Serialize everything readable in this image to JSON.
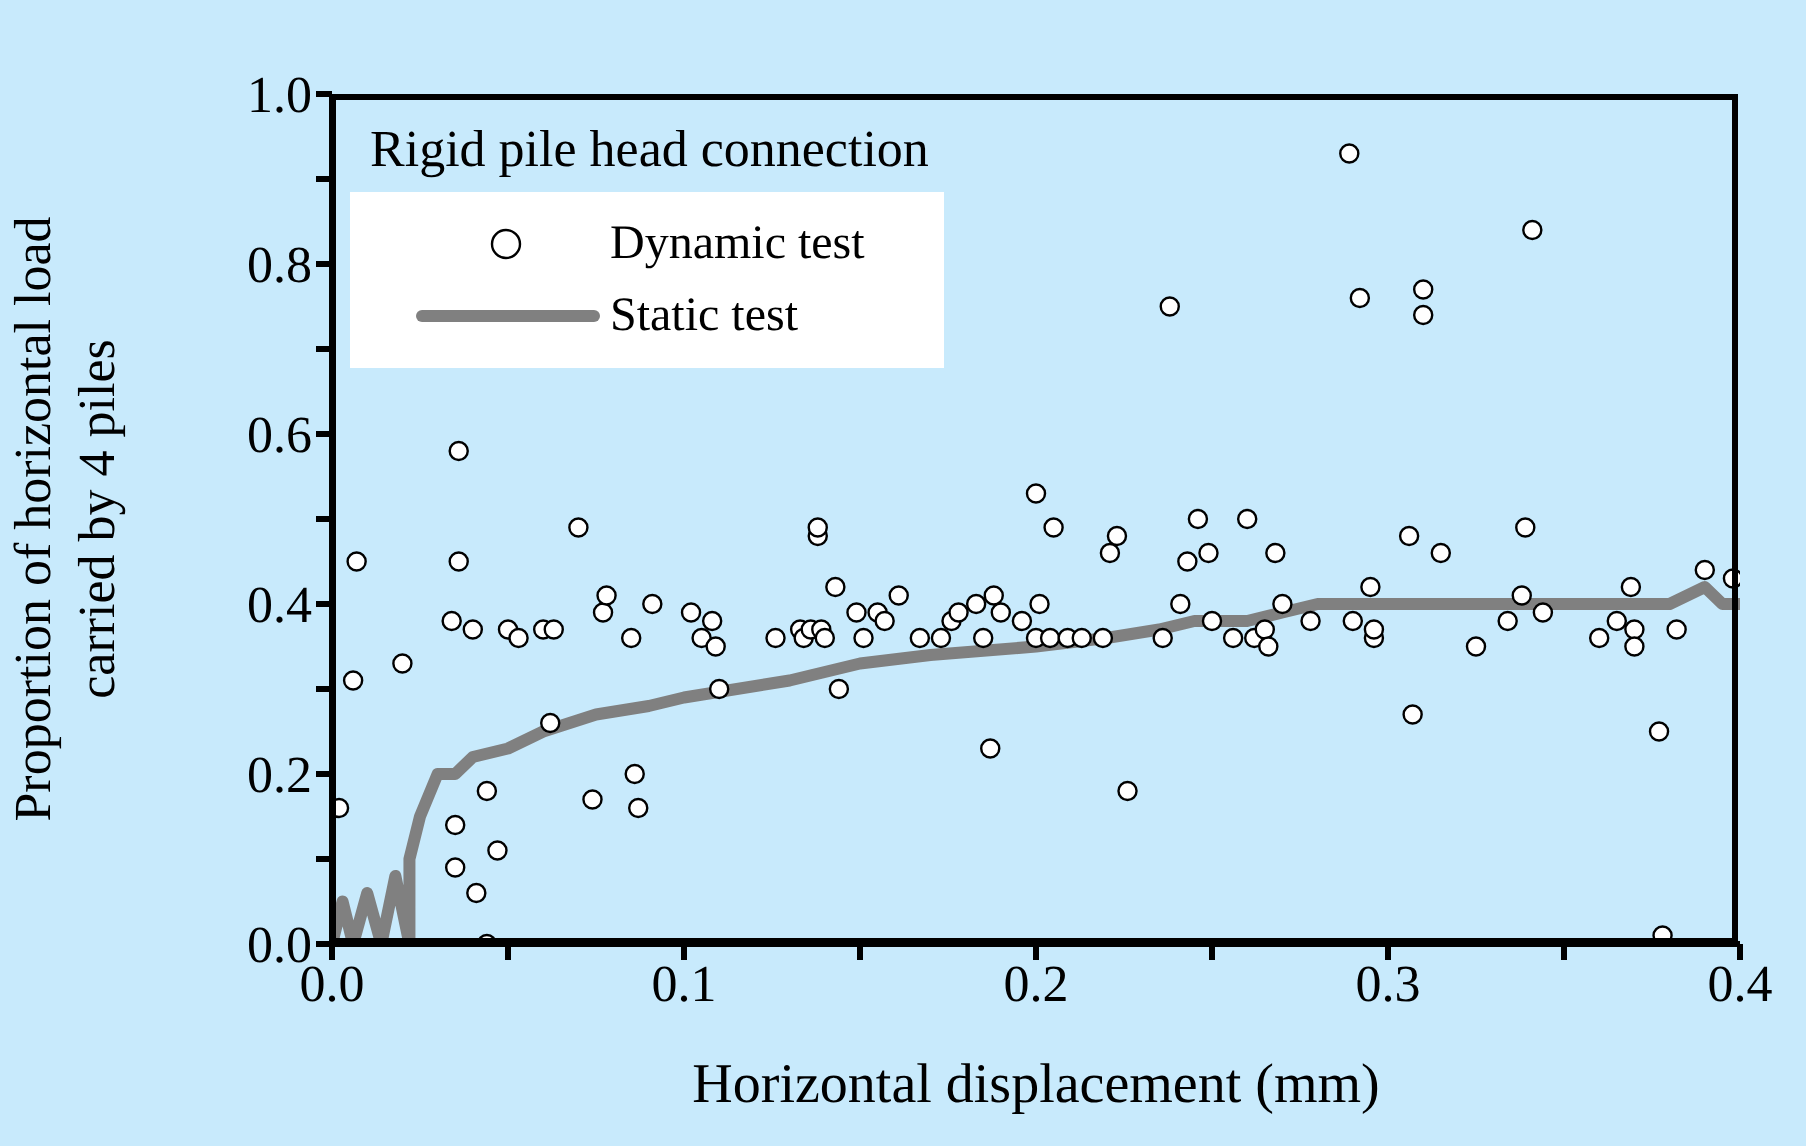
{
  "chart_data": {
    "type": "scatter",
    "xlabel": "Horizontal displacement (mm)",
    "ylabel": "Proportion of horizontal load\ncarried by 4 piles",
    "annotations": [
      "Rigid pile head connection"
    ],
    "xlim": [
      0,
      0.4
    ],
    "xticks": [
      {
        "value": 0,
        "label": "0.0"
      },
      {
        "value": 0.05,
        "label": null
      },
      0.1,
      {
        "value": 0.15,
        "label": null
      },
      0.2,
      {
        "value": 0.25,
        "label": null
      },
      0.3,
      {
        "value": 0.35,
        "label": null
      },
      0.4
    ],
    "ylim": [
      0,
      1
    ],
    "yticks": [
      {
        "value": 0,
        "label": "0.0"
      },
      {
        "value": 0.1,
        "label": null
      },
      0.2,
      {
        "value": 0.3,
        "label": null
      },
      0.4,
      {
        "value": 0.5,
        "label": null
      },
      0.6,
      {
        "value": 0.7,
        "label": null
      },
      0.8,
      {
        "value": 0.9,
        "label": null
      },
      {
        "value": 1,
        "label": "1.0"
      }
    ],
    "legend": "top left",
    "series": [
      {
        "name": "Dynamic test",
        "marker": "circle",
        "color": "#ffffff",
        "x": [
          0.002,
          0.006,
          0.007,
          0.02,
          0.036,
          0.036,
          0.034,
          0.04,
          0.035,
          0.035,
          0.041,
          0.044,
          0.047,
          0.044,
          0.05,
          0.053,
          0.06,
          0.063,
          0.062,
          0.07,
          0.074,
          0.077,
          0.078,
          0.085,
          0.086,
          0.087,
          0.091,
          0.102,
          0.105,
          0.108,
          0.109,
          0.11,
          0.126,
          0.133,
          0.134,
          0.136,
          0.139,
          0.138,
          0.138,
          0.143,
          0.144,
          0.14,
          0.149,
          0.155,
          0.151,
          0.157,
          0.161,
          0.167,
          0.173,
          0.176,
          0.178,
          0.183,
          0.185,
          0.187,
          0.188,
          0.19,
          0.196,
          0.2,
          0.201,
          0.2,
          0.204,
          0.205,
          0.209,
          0.213,
          0.219,
          0.221,
          0.223,
          0.226,
          0.238,
          0.236,
          0.241,
          0.243,
          0.246,
          0.249,
          0.25,
          0.256,
          0.26,
          0.262,
          0.265,
          0.266,
          0.268,
          0.27,
          0.278,
          0.289,
          0.29,
          0.292,
          0.296,
          0.296,
          0.295,
          0.307,
          0.306,
          0.31,
          0.31,
          0.315,
          0.325,
          0.334,
          0.338,
          0.339,
          0.341,
          0.344,
          0.36,
          0.365,
          0.369,
          0.37,
          0.37,
          0.377,
          0.378,
          0.382,
          0.39,
          0.398
        ],
        "values": [
          0.16,
          0.31,
          0.45,
          0.33,
          0.58,
          0.45,
          0.38,
          0.37,
          0.14,
          0.09,
          0.06,
          0.18,
          0.11,
          0.0,
          0.37,
          0.36,
          0.37,
          0.37,
          0.26,
          0.49,
          0.17,
          0.39,
          0.41,
          0.36,
          0.2,
          0.16,
          0.4,
          0.39,
          0.36,
          0.38,
          0.35,
          0.3,
          0.36,
          0.37,
          0.36,
          0.37,
          0.37,
          0.48,
          0.49,
          0.42,
          0.3,
          0.36,
          0.39,
          0.39,
          0.36,
          0.38,
          0.41,
          0.36,
          0.36,
          0.38,
          0.39,
          0.4,
          0.36,
          0.23,
          0.41,
          0.39,
          0.38,
          0.53,
          0.4,
          0.36,
          0.36,
          0.49,
          0.36,
          0.36,
          0.36,
          0.46,
          0.48,
          0.18,
          0.75,
          0.36,
          0.4,
          0.45,
          0.5,
          0.46,
          0.38,
          0.36,
          0.5,
          0.36,
          0.37,
          0.35,
          0.46,
          0.4,
          0.38,
          0.93,
          0.38,
          0.76,
          0.36,
          0.37,
          0.42,
          0.27,
          0.48,
          0.77,
          0.74,
          0.46,
          0.35,
          0.38,
          0.41,
          0.49,
          0.84,
          0.39,
          0.36,
          0.38,
          0.42,
          0.37,
          0.35,
          0.25,
          0.01,
          0.37,
          0.44,
          0.43
        ]
      },
      {
        "name": "Static test",
        "type": "line",
        "color": "#808080",
        "x": [
          0,
          0.003,
          0.006,
          0.01,
          0.014,
          0.018,
          0.022,
          0.022,
          0.025,
          0.03,
          0.035,
          0.04,
          0.05,
          0.06,
          0.075,
          0.09,
          0.1,
          0.13,
          0.15,
          0.17,
          0.2,
          0.22,
          0.235,
          0.245,
          0.26,
          0.27,
          0.28,
          0.3,
          0.35,
          0.38,
          0.39,
          0.395,
          0.4
        ],
        "values": [
          0,
          0.05,
          0,
          0.06,
          0,
          0.08,
          0,
          0.1,
          0.15,
          0.2,
          0.2,
          0.22,
          0.23,
          0.25,
          0.27,
          0.28,
          0.29,
          0.31,
          0.33,
          0.34,
          0.35,
          0.36,
          0.37,
          0.38,
          0.38,
          0.39,
          0.4,
          0.4,
          0.4,
          0.4,
          0.42,
          0.4,
          0.4
        ]
      }
    ]
  }
}
